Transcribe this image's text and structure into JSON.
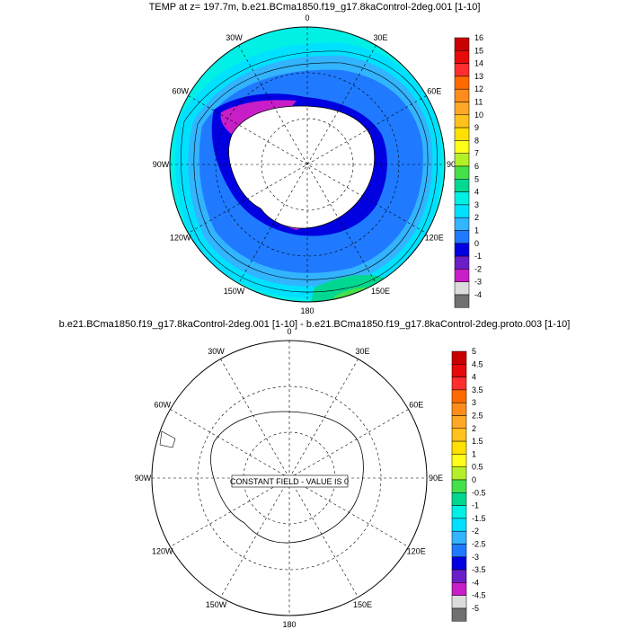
{
  "top_panel": {
    "title": "TEMP at z= 197.7m, b.e21.BCma1850.f19_g17.8kaControl-2deg.001 [1-10]",
    "longitude_labels": [
      "0",
      "30E",
      "60E",
      "90E",
      "120E",
      "150E",
      "180",
      "150W",
      "120W",
      "90W",
      "60W",
      "30W"
    ],
    "colorbar_labels": [
      "16",
      "15",
      "14",
      "13",
      "12",
      "11",
      "10",
      "9",
      "8",
      "7",
      "6",
      "5",
      "4",
      "3",
      "2",
      "1",
      "0",
      "-1",
      "-2",
      "-3",
      "-4"
    ],
    "colorbar_colors": [
      "#c80000",
      "#e60a0a",
      "#ff2d2d",
      "#ff6a00",
      "#ff8c1a",
      "#ffa726",
      "#ffc21a",
      "#ffe000",
      "#ffff1a",
      "#b4f028",
      "#46e04a",
      "#00d791",
      "#00f0e6",
      "#00e1ff",
      "#32b4ff",
      "#1f7aff",
      "#0000e0",
      "#6a1ec8",
      "#c81ec8",
      "#dcdcdc",
      "#707070"
    ]
  },
  "bottom_panel": {
    "title": "b.e21.BCma1850.f19_g17.8kaControl-2deg.001 [1-10] - b.e21.BCma1850.f19_g17.8kaControl-2deg.proto.003 [1-10]",
    "longitude_labels": [
      "0",
      "30E",
      "60E",
      "90E",
      "120E",
      "150E",
      "180",
      "150W",
      "120W",
      "90W",
      "60W",
      "30W"
    ],
    "annotation": "CONSTANT FIELD - VALUE IS 0",
    "colorbar_labels": [
      "5",
      "4.5",
      "4",
      "3.5",
      "3",
      "2.5",
      "2",
      "1.5",
      "1",
      "0.5",
      "0",
      "-0.5",
      "-1",
      "-1.5",
      "-2",
      "-2.5",
      "-3",
      "-3.5",
      "-4",
      "-4.5",
      "-5"
    ],
    "colorbar_colors": [
      "#c80000",
      "#e60a0a",
      "#ff2d2d",
      "#ff6a00",
      "#ff8c1a",
      "#ffa726",
      "#ffc21a",
      "#ffe000",
      "#ffff1a",
      "#b4f028",
      "#46e04a",
      "#00d791",
      "#00f0e6",
      "#00e1ff",
      "#32b4ff",
      "#1f7aff",
      "#0000e0",
      "#6a1ec8",
      "#c81ec8",
      "#dcdcdc",
      "#707070"
    ]
  }
}
